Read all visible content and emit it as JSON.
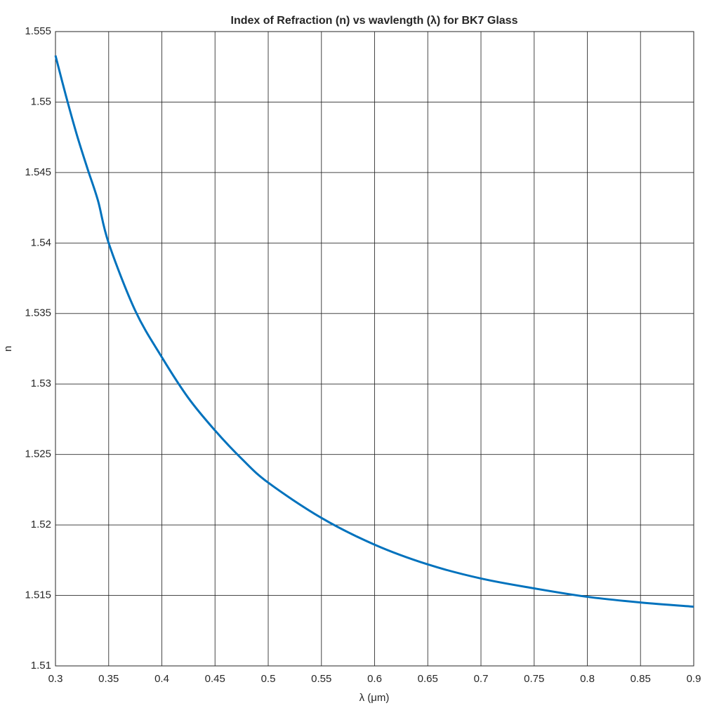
{
  "chart_data": {
    "type": "line",
    "title": "Index of Refraction (n) vs wavlength (λ) for BK7 Glass",
    "x_label": "λ (μm)",
    "y_label": "n",
    "x": [
      0.3,
      0.31,
      0.32,
      0.33,
      0.34,
      0.35,
      0.375,
      0.4,
      0.425,
      0.45,
      0.475,
      0.5,
      0.55,
      0.6,
      0.65,
      0.7,
      0.75,
      0.8,
      0.85,
      0.9
    ],
    "series": [
      {
        "name": "n",
        "color": "#0072bd",
        "values": [
          1.5533,
          1.5504,
          1.5477,
          1.5453,
          1.543,
          1.54,
          1.5352,
          1.5319,
          1.529,
          1.5267,
          1.5247,
          1.523,
          1.5205,
          1.5186,
          1.5172,
          1.5162,
          1.5155,
          1.5149,
          1.5145,
          1.5142
        ]
      }
    ],
    "xlim": [
      0.3,
      0.9
    ],
    "xticks": [
      0.3,
      0.35,
      0.4,
      0.45,
      0.5,
      0.55,
      0.6,
      0.65,
      0.7,
      0.75,
      0.8,
      0.85,
      0.9
    ],
    "ylim": [
      1.51,
      1.555
    ],
    "yticks": [
      1.51,
      1.515,
      1.52,
      1.525,
      1.53,
      1.535,
      1.54,
      1.545,
      1.55,
      1.555
    ],
    "grid": true
  }
}
